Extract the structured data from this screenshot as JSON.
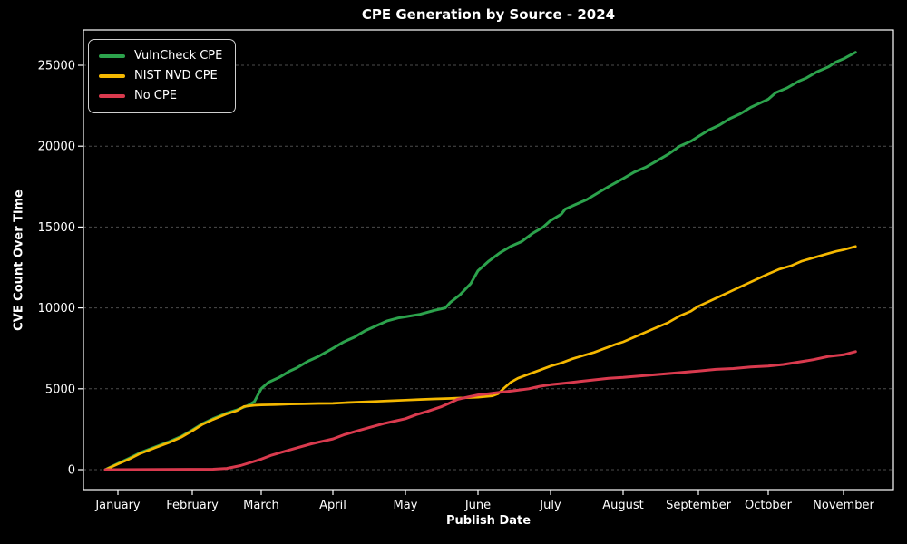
{
  "figure": {
    "background_color": "#000000",
    "text_color": "#ffffff",
    "grid_color": "#8a8a8a"
  },
  "chart_data": {
    "type": "line",
    "title": "CPE Generation by Source - 2024",
    "xlabel": "Publish Date",
    "ylabel": "CVE Count Over Time",
    "x_ticklabels": [
      "January",
      "February",
      "March",
      "April",
      "May",
      "June",
      "July",
      "August",
      "September",
      "October",
      "November"
    ],
    "y_ticks": [
      0,
      5000,
      10000,
      15000,
      20000,
      25000
    ],
    "ylim": [
      -1300,
      27100
    ],
    "grid": "horizontal-dashed",
    "legend_position": "upper-left",
    "x_unit": "months since January tick (fractional); series values are cumulative CVE counts",
    "series": [
      {
        "name": "VulnCheck CPE",
        "color": "#2ca24c",
        "width": 3,
        "points": [
          [
            -0.17,
            0
          ],
          [
            0,
            380
          ],
          [
            0.15,
            700
          ],
          [
            0.3,
            1050
          ],
          [
            0.5,
            1400
          ],
          [
            0.7,
            1750
          ],
          [
            0.85,
            2050
          ],
          [
            1.0,
            2450
          ],
          [
            1.15,
            2850
          ],
          [
            1.3,
            3150
          ],
          [
            1.5,
            3500
          ],
          [
            1.65,
            3700
          ],
          [
            1.8,
            3950
          ],
          [
            1.9,
            4200
          ],
          [
            2.0,
            5000
          ],
          [
            2.1,
            5400
          ],
          [
            2.25,
            5700
          ],
          [
            2.4,
            6100
          ],
          [
            2.5,
            6300
          ],
          [
            2.65,
            6700
          ],
          [
            2.8,
            7000
          ],
          [
            3.0,
            7500
          ],
          [
            3.15,
            7900
          ],
          [
            3.3,
            8200
          ],
          [
            3.45,
            8600
          ],
          [
            3.6,
            8900
          ],
          [
            3.75,
            9200
          ],
          [
            3.9,
            9380
          ],
          [
            4.0,
            9450
          ],
          [
            4.2,
            9600
          ],
          [
            4.4,
            9850
          ],
          [
            4.55,
            10000
          ],
          [
            4.62,
            10350
          ],
          [
            4.75,
            10800
          ],
          [
            4.9,
            11500
          ],
          [
            5.0,
            12300
          ],
          [
            5.15,
            12900
          ],
          [
            5.3,
            13400
          ],
          [
            5.45,
            13800
          ],
          [
            5.6,
            14100
          ],
          [
            5.75,
            14600
          ],
          [
            5.9,
            15000
          ],
          [
            6.0,
            15400
          ],
          [
            6.15,
            15800
          ],
          [
            6.2,
            16100
          ],
          [
            6.35,
            16400
          ],
          [
            6.5,
            16700
          ],
          [
            6.65,
            17100
          ],
          [
            6.8,
            17500
          ],
          [
            7.0,
            18000
          ],
          [
            7.15,
            18400
          ],
          [
            7.3,
            18700
          ],
          [
            7.45,
            19100
          ],
          [
            7.6,
            19500
          ],
          [
            7.75,
            20000
          ],
          [
            7.9,
            20300
          ],
          [
            8.0,
            20600
          ],
          [
            8.15,
            21000
          ],
          [
            8.3,
            21300
          ],
          [
            8.45,
            21700
          ],
          [
            8.6,
            22000
          ],
          [
            8.75,
            22400
          ],
          [
            8.9,
            22700
          ],
          [
            9.0,
            22900
          ],
          [
            9.1,
            23300
          ],
          [
            9.25,
            23600
          ],
          [
            9.4,
            24000
          ],
          [
            9.5,
            24200
          ],
          [
            9.65,
            24600
          ],
          [
            9.8,
            24900
          ],
          [
            9.9,
            25200
          ],
          [
            10.0,
            25400
          ],
          [
            10.08,
            25600
          ],
          [
            10.16,
            25800
          ]
        ]
      },
      {
        "name": "NIST NVD CPE",
        "color": "#f5b800",
        "width": 2.7,
        "points": [
          [
            -0.17,
            0
          ],
          [
            0,
            350
          ],
          [
            0.15,
            650
          ],
          [
            0.3,
            1000
          ],
          [
            0.5,
            1350
          ],
          [
            0.7,
            1700
          ],
          [
            0.85,
            2000
          ],
          [
            1.0,
            2400
          ],
          [
            1.15,
            2800
          ],
          [
            1.3,
            3100
          ],
          [
            1.5,
            3450
          ],
          [
            1.65,
            3650
          ],
          [
            1.75,
            3900
          ],
          [
            1.9,
            3980
          ],
          [
            2.0,
            4000
          ],
          [
            2.2,
            4020
          ],
          [
            2.4,
            4050
          ],
          [
            2.6,
            4070
          ],
          [
            2.8,
            4090
          ],
          [
            3.0,
            4100
          ],
          [
            3.2,
            4150
          ],
          [
            3.4,
            4180
          ],
          [
            3.6,
            4220
          ],
          [
            3.8,
            4260
          ],
          [
            4.0,
            4300
          ],
          [
            4.2,
            4340
          ],
          [
            4.4,
            4370
          ],
          [
            4.6,
            4400
          ],
          [
            4.8,
            4440
          ],
          [
            5.0,
            4480
          ],
          [
            5.2,
            4560
          ],
          [
            5.28,
            4700
          ],
          [
            5.35,
            5000
          ],
          [
            5.45,
            5400
          ],
          [
            5.55,
            5650
          ],
          [
            5.7,
            5900
          ],
          [
            5.85,
            6150
          ],
          [
            6.0,
            6400
          ],
          [
            6.15,
            6600
          ],
          [
            6.3,
            6850
          ],
          [
            6.45,
            7050
          ],
          [
            6.6,
            7250
          ],
          [
            6.75,
            7500
          ],
          [
            6.9,
            7750
          ],
          [
            7.0,
            7900
          ],
          [
            7.15,
            8200
          ],
          [
            7.3,
            8500
          ],
          [
            7.45,
            8800
          ],
          [
            7.6,
            9100
          ],
          [
            7.75,
            9500
          ],
          [
            7.9,
            9800
          ],
          [
            8.0,
            10100
          ],
          [
            8.15,
            10400
          ],
          [
            8.3,
            10700
          ],
          [
            8.45,
            11000
          ],
          [
            8.6,
            11300
          ],
          [
            8.7,
            11500
          ],
          [
            8.85,
            11800
          ],
          [
            9.0,
            12100
          ],
          [
            9.15,
            12400
          ],
          [
            9.3,
            12600
          ],
          [
            9.45,
            12900
          ],
          [
            9.6,
            13100
          ],
          [
            9.75,
            13300
          ],
          [
            9.9,
            13500
          ],
          [
            10.0,
            13600
          ],
          [
            10.16,
            13800
          ]
        ]
      },
      {
        "name": "No CPE",
        "color": "#d93a4e",
        "width": 3,
        "points": [
          [
            -0.17,
            0
          ],
          [
            1.3,
            30
          ],
          [
            1.5,
            80
          ],
          [
            1.7,
            250
          ],
          [
            1.85,
            450
          ],
          [
            2.0,
            650
          ],
          [
            2.15,
            900
          ],
          [
            2.3,
            1100
          ],
          [
            2.5,
            1350
          ],
          [
            2.7,
            1600
          ],
          [
            2.85,
            1750
          ],
          [
            3.0,
            1900
          ],
          [
            3.15,
            2150
          ],
          [
            3.3,
            2350
          ],
          [
            3.5,
            2600
          ],
          [
            3.7,
            2850
          ],
          [
            3.85,
            3000
          ],
          [
            4.0,
            3150
          ],
          [
            4.15,
            3400
          ],
          [
            4.3,
            3600
          ],
          [
            4.5,
            3900
          ],
          [
            4.6,
            4100
          ],
          [
            4.72,
            4350
          ],
          [
            4.85,
            4480
          ],
          [
            5.0,
            4620
          ],
          [
            5.15,
            4700
          ],
          [
            5.3,
            4780
          ],
          [
            5.5,
            4880
          ],
          [
            5.7,
            5000
          ],
          [
            5.85,
            5150
          ],
          [
            6.0,
            5250
          ],
          [
            6.2,
            5350
          ],
          [
            6.4,
            5450
          ],
          [
            6.6,
            5550
          ],
          [
            6.8,
            5650
          ],
          [
            7.0,
            5700
          ],
          [
            7.25,
            5800
          ],
          [
            7.5,
            5900
          ],
          [
            7.75,
            6000
          ],
          [
            8.0,
            6100
          ],
          [
            8.25,
            6200
          ],
          [
            8.5,
            6250
          ],
          [
            8.75,
            6350
          ],
          [
            9.0,
            6400
          ],
          [
            9.2,
            6500
          ],
          [
            9.4,
            6650
          ],
          [
            9.6,
            6800
          ],
          [
            9.8,
            7000
          ],
          [
            10.0,
            7100
          ],
          [
            10.08,
            7200
          ],
          [
            10.16,
            7300
          ]
        ]
      }
    ]
  }
}
